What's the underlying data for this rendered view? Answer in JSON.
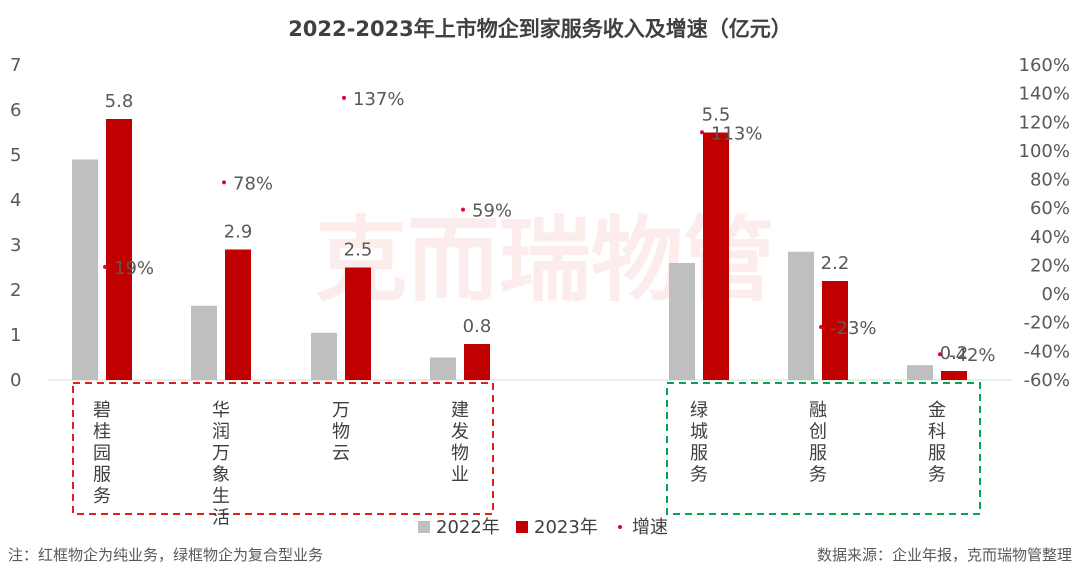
{
  "chart_data": {
    "type": "bar",
    "title": "2022-2023年上市物企到家服务收入及增速（亿元）",
    "categories": [
      "碧桂园服务",
      "华润万象生活",
      "万物云",
      "建发物业",
      "绿城服务",
      "融创服务",
      "金科服务"
    ],
    "series": [
      {
        "name": "2022年",
        "axis": "left",
        "color": "#bfbfbf",
        "values": [
          4.9,
          1.65,
          1.05,
          0.5,
          2.6,
          2.85,
          0.33
        ]
      },
      {
        "name": "2023年",
        "axis": "left",
        "color": "#c00000",
        "values": [
          5.8,
          2.9,
          2.5,
          0.8,
          5.5,
          2.2,
          0.2
        ],
        "data_labels": [
          "5.8",
          "2.9",
          "2.5",
          "0.8",
          "5.5",
          "2.2",
          "0.2"
        ]
      },
      {
        "name": "增速",
        "axis": "right",
        "type": "scatter",
        "color": "#e8002d",
        "values": [
          19,
          78,
          137,
          59,
          113,
          -23,
          -42
        ],
        "data_labels": [
          "19%",
          "78%",
          "137%",
          "59%",
          "113%",
          "-23%",
          "-42%"
        ]
      }
    ],
    "y_left": {
      "min": 0,
      "max": 7,
      "ticks": [
        "0",
        "1",
        "2",
        "3",
        "4",
        "5",
        "6",
        "7"
      ]
    },
    "y_right": {
      "min": -60,
      "max": 160,
      "ticks": [
        "-60%",
        "-40%",
        "-20%",
        "0%",
        "20%",
        "40%",
        "60%",
        "80%",
        "100%",
        "120%",
        "140%",
        "160%"
      ]
    },
    "groups": [
      {
        "label": "红框",
        "color": "#e02020",
        "categories": [
          0,
          1,
          2,
          3
        ]
      },
      {
        "label": "绿框",
        "color": "#00a650",
        "categories": [
          4,
          5,
          6
        ]
      }
    ],
    "legend": {
      "position": "bottom",
      "entries": [
        "2022年",
        "2023年",
        "增速"
      ]
    },
    "watermark": "克而瑞物管"
  },
  "footer": {
    "note": "注：红框物企为纯业务，绿框物企为复合型业务",
    "source": "数据来源：企业年报，克而瑞物管整理"
  }
}
